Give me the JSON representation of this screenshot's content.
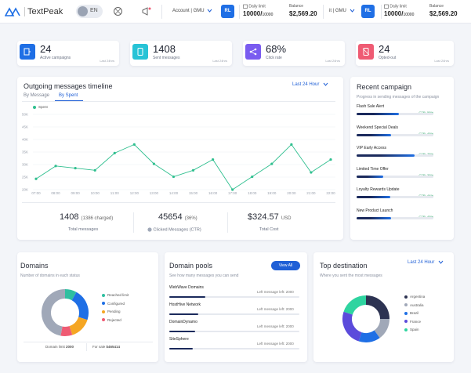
{
  "header": {
    "brand": "TextPeak",
    "lang": "EN",
    "account1": "Account | GMU",
    "avatar": "RL",
    "daily_limit_label": "Daily limit",
    "daily_limit_value": "10000/",
    "daily_limit_max": "10000",
    "balance_label": "Balance",
    "balance_value": "$2,569.20",
    "account2": "it | GMU",
    "avatar2": "RL",
    "daily_limit_label2": "Daily limit",
    "daily_limit_value2": "10000/",
    "daily_limit_max2": "10000",
    "balance_label2": "Balance",
    "balance_value2": "$2,569.20"
  },
  "kpis": [
    {
      "value": "24",
      "label": "Active campaigns",
      "period": "Last 24hrs",
      "color": "#1f6fe5"
    },
    {
      "value": "1408",
      "label": "Sent messages",
      "period": "Last 24hrs",
      "color": "#27c3d6"
    },
    {
      "value": "68%",
      "label": "Click rate",
      "period": "Last 24hrs",
      "color": "#7a5cf0"
    },
    {
      "value": "24",
      "label": "Opted-out",
      "period": "Last 24hrs",
      "color": "#ef5b73"
    }
  ],
  "timeline": {
    "title": "Outgoing messages timeline",
    "range": "Last 24 Hour",
    "tabs": [
      "By Message",
      "By Spent"
    ],
    "legend": "Spent"
  },
  "chart_data": {
    "type": "line",
    "x": [
      "07:00",
      "08:00",
      "09:00",
      "10:00",
      "11:00",
      "12:00",
      "13:00",
      "14:00",
      "15:00",
      "16:00",
      "17:00",
      "18:00",
      "19:00",
      "20:00",
      "21:00",
      "22:00"
    ],
    "y_ticks": [
      "50K",
      "45K",
      "40K",
      "35K",
      "30K",
      "25K",
      "20K"
    ],
    "series": [
      {
        "name": "Spent",
        "values": [
          20,
          26,
          25,
          24,
          32,
          36,
          27,
          21,
          24,
          29,
          15,
          21,
          27,
          36,
          23,
          29
        ]
      }
    ],
    "ylim": [
      15,
      50
    ]
  },
  "summary": {
    "total_messages": "1408",
    "total_charged": "(1386 charged)",
    "total_messages_label": "Total messages",
    "clicked": "45654",
    "clicked_pct": "(36%)",
    "clicked_label": "Clicked Messages (CTR)",
    "cost": "$324.57",
    "cost_unit": "USD",
    "cost_label": "Total Cost"
  },
  "recent": {
    "title": "Recent campaign",
    "subtitle": "Progress in sending messages of the campaign",
    "items": [
      {
        "name": "Flash Sale Alert",
        "ctr": "CTR: 55%",
        "progress": 0.55
      },
      {
        "name": "Weekend Special Deals",
        "ctr": "CTR: 45%",
        "progress": 0.45
      },
      {
        "name": "VIP Early Access",
        "ctr": "CTR: 75%",
        "progress": 0.75
      },
      {
        "name": "Limited Time Offer",
        "ctr": "CTR: 35%",
        "progress": 0.35
      },
      {
        "name": "Loyalty Rewards Update",
        "ctr": "CTR: 44%",
        "progress": 0.44
      },
      {
        "name": "New Product Launch",
        "ctr": "CTR: 45%",
        "progress": 0.45
      }
    ]
  },
  "domains": {
    "title": "Domains",
    "subtitle": "Number of domains in each status",
    "legend": [
      {
        "label": "Reached limit",
        "color": "#2fbfa0",
        "value": 8
      },
      {
        "label": "Configured",
        "color": "#1f6fe5",
        "value": 22
      },
      {
        "label": "Pending",
        "color": "#f5a623",
        "value": 15
      },
      {
        "label": "Rejected",
        "color": "#ef5b73",
        "value": 8
      }
    ],
    "unused_color": "#a0a8b8",
    "unused_value": 47,
    "limit_label": "Domain limit",
    "limit_value": "2000",
    "price_label": "For sale",
    "price_value": "$465414"
  },
  "pools": {
    "title": "Domain pools",
    "subtitle": "See how many messages you can send",
    "button": "View All",
    "items": [
      {
        "name": "WebWave Domains",
        "left": "Left message left: 2000",
        "progress": 0.28
      },
      {
        "name": "HostHive Network",
        "left": "Left message left: 2000",
        "progress": 0.22
      },
      {
        "name": "DomainDynamo",
        "left": "Left message left: 2000",
        "progress": 0.2
      },
      {
        "name": "SiteSphere",
        "left": "Left message left: 2000",
        "progress": 0.18
      }
    ]
  },
  "destination": {
    "title": "Top destination",
    "subtitle": "Where you sent the most messages",
    "range": "Last 24 Hour",
    "legend": [
      {
        "label": "Argentina",
        "color": "#2d3352",
        "value": 25
      },
      {
        "label": "Australia",
        "color": "#a0a8b8",
        "value": 15
      },
      {
        "label": "Brazil",
        "color": "#1f6fe5",
        "value": 15
      },
      {
        "label": "France",
        "color": "#5b4bdb",
        "value": 25
      },
      {
        "label": "Spain",
        "color": "#2fd4a0",
        "value": 20
      }
    ]
  }
}
